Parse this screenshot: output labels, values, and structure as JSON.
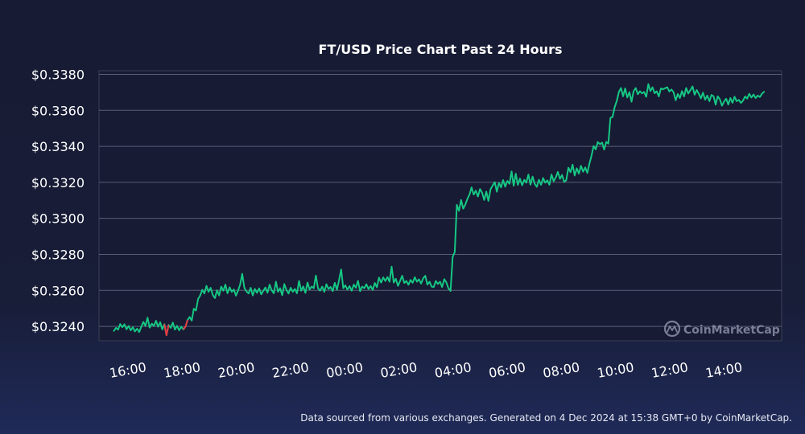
{
  "footer_text": "Data sourced from various exchanges. Generated on 4 Dec 2024 at 15:38 GMT+0 by CoinMarketCap.",
  "watermark": "CoinMarketCap",
  "chart_data": {
    "type": "line",
    "title": "FT/USD Price Chart Past 24 Hours",
    "xlabel": "",
    "ylabel": "",
    "grid": true,
    "legend": "none",
    "ylim": [
      0.3232,
      0.3382
    ],
    "xlim_hours": [
      -0.55,
      24.65
    ],
    "yticks": [
      0.324,
      0.326,
      0.328,
      0.33,
      0.332,
      0.334,
      0.336,
      0.338
    ],
    "ytick_labels": [
      "$0.3240",
      "$0.3260",
      "$0.3280",
      "$0.3300",
      "$0.3320",
      "$0.3340",
      "$0.3360",
      "$0.3380"
    ],
    "xtick_labels": [
      "16:00",
      "18:00",
      "20:00",
      "22:00",
      "00:00",
      "02:00",
      "04:00",
      "06:00",
      "08:00",
      "10:00",
      "12:00",
      "14:00"
    ],
    "x_start": "15:38",
    "x_end": "15:38",
    "colors": {
      "up": "#16c784",
      "down": "#ea3943",
      "grid": "#5a5f7a",
      "plot_bg": "#171b33",
      "axis": "#3b3f57"
    },
    "series": [
      {
        "values": [
          0.32375,
          0.32392,
          0.32382,
          0.32413,
          0.32395,
          0.32412,
          0.32384,
          0.32402,
          0.32378,
          0.32395,
          0.32372,
          0.32387,
          0.32368,
          0.32398,
          0.32425,
          0.32402,
          0.32448,
          0.32393,
          0.32415,
          0.32402,
          0.32431,
          0.32398,
          0.32423,
          0.32383,
          0.32412,
          0.32351,
          0.32408,
          0.32392,
          0.32421,
          0.32382,
          0.32403,
          0.32378,
          0.32398,
          0.32383,
          0.32398,
          0.32435,
          0.32452,
          0.32432,
          0.32498,
          0.32488,
          0.32552,
          0.32572,
          0.32603,
          0.32583,
          0.32625,
          0.32592,
          0.32614,
          0.32575,
          0.32557,
          0.32601,
          0.32572,
          0.32621,
          0.32598,
          0.32632,
          0.32584,
          0.32617,
          0.32592,
          0.32605,
          0.32571,
          0.32598,
          0.32632,
          0.32692,
          0.32613,
          0.32594,
          0.32583,
          0.32614,
          0.32572,
          0.32608,
          0.32586,
          0.32611,
          0.32578,
          0.32597,
          0.32616,
          0.32587,
          0.32632,
          0.32601,
          0.32584,
          0.32648,
          0.32592,
          0.32612,
          0.32573,
          0.32635,
          0.32602,
          0.32582,
          0.32614,
          0.32592,
          0.32608,
          0.32584,
          0.32652,
          0.32598,
          0.32622,
          0.32586,
          0.32643,
          0.32605,
          0.32621,
          0.32612,
          0.32682,
          0.32612,
          0.32598,
          0.32621,
          0.32592,
          0.32634,
          0.32608,
          0.32619,
          0.32596,
          0.32642,
          0.32603,
          0.32658,
          0.32716,
          0.32612,
          0.32628,
          0.32604,
          0.32624,
          0.32598,
          0.32632,
          0.32614,
          0.32653,
          0.32596,
          0.32621,
          0.32612,
          0.32634,
          0.32607,
          0.32624,
          0.32602,
          0.32641,
          0.32617,
          0.32671,
          0.32643,
          0.32672,
          0.32652,
          0.32674,
          0.32648,
          0.32732,
          0.32643,
          0.32664,
          0.32625,
          0.32652,
          0.32681,
          0.32641,
          0.32652,
          0.32631,
          0.32658,
          0.32642,
          0.32673,
          0.32648,
          0.32661,
          0.32638,
          0.32667,
          0.32681,
          0.32632,
          0.32648,
          0.32621,
          0.32618,
          0.32652,
          0.32635,
          0.32648,
          0.32618,
          0.32662,
          0.32644,
          0.32611,
          0.32597,
          0.32785,
          0.32813,
          0.33075,
          0.33042,
          0.33102,
          0.33054,
          0.33076,
          0.33108,
          0.33132,
          0.33172,
          0.33132,
          0.33154,
          0.33121,
          0.33163,
          0.33142,
          0.33102,
          0.33148,
          0.33097,
          0.33162,
          0.33182,
          0.33201,
          0.33148,
          0.33197,
          0.33172,
          0.33213,
          0.33176,
          0.33208,
          0.33192,
          0.33261,
          0.33181,
          0.33248,
          0.33186,
          0.33221,
          0.33184,
          0.33214,
          0.33198,
          0.33243,
          0.33187,
          0.33232,
          0.33192,
          0.33175,
          0.33214,
          0.33186,
          0.33224,
          0.33198,
          0.33211,
          0.33187,
          0.33243,
          0.33206,
          0.33227,
          0.33258,
          0.33219,
          0.33241,
          0.33202,
          0.33212,
          0.33281,
          0.33256,
          0.33298,
          0.33238,
          0.33278,
          0.33248,
          0.33292,
          0.33259,
          0.33283,
          0.33252,
          0.33304,
          0.33348,
          0.33402,
          0.33383,
          0.33424,
          0.33412,
          0.33421,
          0.33382,
          0.33425,
          0.33415,
          0.33558,
          0.33563,
          0.33618,
          0.33652,
          0.33702,
          0.33724,
          0.33678,
          0.33722,
          0.33672,
          0.33701,
          0.33648,
          0.33706,
          0.33724,
          0.33689,
          0.33706,
          0.33694,
          0.33702,
          0.33675,
          0.33746,
          0.33707,
          0.33728,
          0.33695,
          0.33706,
          0.33677,
          0.33722,
          0.33717,
          0.33723,
          0.33728,
          0.33705,
          0.33716,
          0.33701,
          0.33656,
          0.33691,
          0.33668,
          0.33707,
          0.33677,
          0.33724,
          0.33693,
          0.33712,
          0.33733,
          0.33687,
          0.33713,
          0.33692,
          0.33667,
          0.33698,
          0.33659,
          0.33682,
          0.33651,
          0.33685,
          0.33678,
          0.33632,
          0.33678,
          0.33661,
          0.33626,
          0.33649,
          0.33664,
          0.33632,
          0.33668,
          0.33642,
          0.33676,
          0.33651,
          0.33658,
          0.33641,
          0.33654,
          0.33677,
          0.33665,
          0.33692,
          0.33671,
          0.33688,
          0.33668,
          0.33682,
          0.33674,
          0.33692,
          0.33703
        ]
      }
    ],
    "down_segments": [
      [
        24,
        26
      ],
      [
        33,
        35
      ]
    ]
  }
}
